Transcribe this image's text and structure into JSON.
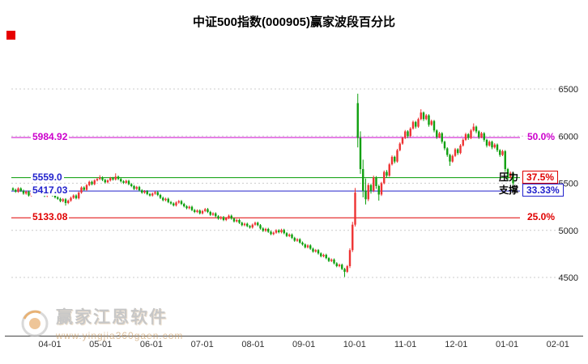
{
  "title": "中证500指数(000905)赢家波段百分比",
  "corner_marker_color": "#e60000",
  "watermark": {
    "brand": "赢家江恩软件",
    "url": "www.yingjia360gaen.com"
  },
  "y_axis": {
    "ticks": [
      6500,
      6000,
      5500,
      5000,
      4500
    ]
  },
  "x_axis": {
    "ticks": [
      "04-01",
      "05-01",
      "06-01",
      "07-01",
      "08-01",
      "09-01",
      "10-01",
      "11-01",
      "12-01",
      "01-01",
      "02-01"
    ]
  },
  "levels": [
    {
      "value": 5984.92,
      "price_label": "5984.92",
      "pct_label": "50.0%",
      "tag": "",
      "line_color": "#cc00cc",
      "price_color": "#cc00cc",
      "pct_color": "#cc00cc",
      "boxed": false
    },
    {
      "value": 5559.0,
      "price_label": "5559.0",
      "pct_label": "37.5%",
      "tag": "压力",
      "line_color": "#009900",
      "price_color": "#2222cc",
      "pct_color": "#e00000",
      "boxed": true
    },
    {
      "value": 5417.03,
      "price_label": "5417.03",
      "pct_label": "33.33%",
      "tag": "支撑",
      "line_color": "#2222cc",
      "price_color": "#2222cc",
      "pct_color": "#2222cc",
      "boxed": true
    },
    {
      "value": 5133.08,
      "price_label": "5133.08",
      "pct_label": "25.0%",
      "tag": "",
      "line_color": "#e00000",
      "price_color": "#e00000",
      "pct_color": "#e00000",
      "boxed": false
    }
  ],
  "chart_data": {
    "type": "candlestick",
    "title": "中证500指数(000905)赢家波段百分比",
    "index_name": "中证500指数",
    "symbol": "000905",
    "up_color": "#ee3333",
    "down_color": "#0fa00f",
    "ylim": [
      3880,
      7060
    ],
    "y_gridlines": [
      4500,
      5000,
      5500,
      6000,
      6500
    ],
    "x_tick_labels": [
      "04-01",
      "05-01",
      "06-01",
      "07-01",
      "08-01",
      "09-01",
      "10-01",
      "11-01",
      "12-01",
      "01-01",
      "02-01"
    ],
    "reference_levels": [
      {
        "pct": "50.0%",
        "price": 5984.92
      },
      {
        "pct": "37.5%",
        "price": 5559.0,
        "role": "压力"
      },
      {
        "pct": "33.33%",
        "price": 5417.03,
        "role": "支撑"
      },
      {
        "pct": "25.0%",
        "price": 5133.08
      }
    ],
    "candles": [
      [
        5445,
        5457,
        5418,
        5430
      ],
      [
        5430,
        5442,
        5398,
        5410
      ],
      [
        5410,
        5457,
        5398,
        5445
      ],
      [
        5445,
        5457,
        5408,
        5420
      ],
      [
        5420,
        5432,
        5378,
        5390
      ],
      [
        5390,
        5422,
        5378,
        5410
      ],
      [
        5410,
        5422,
        5358,
        5370
      ],
      [
        5370,
        5412,
        5358,
        5400
      ],
      [
        5400,
        5437,
        5388,
        5425
      ],
      [
        5425,
        5437,
        5383,
        5395
      ],
      [
        5395,
        5427,
        5383,
        5415
      ],
      [
        5415,
        5427,
        5368,
        5380
      ],
      [
        5380,
        5392,
        5353,
        5365
      ],
      [
        5365,
        5402,
        5353,
        5390
      ],
      [
        5390,
        5417,
        5378,
        5405
      ],
      [
        5405,
        5417,
        5358,
        5370
      ],
      [
        5370,
        5382,
        5338,
        5350
      ],
      [
        5350,
        5362,
        5323,
        5335
      ],
      [
        5335,
        5347,
        5298,
        5310
      ],
      [
        5310,
        5342,
        5298,
        5330
      ],
      [
        5330,
        5342,
        5262,
        5290
      ],
      [
        5290,
        5327,
        5278,
        5315
      ],
      [
        5315,
        5357,
        5303,
        5345
      ],
      [
        5345,
        5382,
        5333,
        5370
      ],
      [
        5370,
        5382,
        5328,
        5340
      ],
      [
        5340,
        5412,
        5328,
        5400
      ],
      [
        5400,
        5467,
        5388,
        5455
      ],
      [
        5455,
        5467,
        5418,
        5430
      ],
      [
        5430,
        5492,
        5418,
        5480
      ],
      [
        5480,
        5527,
        5468,
        5515
      ],
      [
        5515,
        5527,
        5478,
        5490
      ],
      [
        5490,
        5542,
        5478,
        5530
      ],
      [
        5530,
        5557,
        5518,
        5545
      ],
      [
        5545,
        5585,
        5533,
        5560
      ],
      [
        5560,
        5572,
        5523,
        5535
      ],
      [
        5535,
        5547,
        5498,
        5510
      ],
      [
        5510,
        5542,
        5498,
        5530
      ],
      [
        5530,
        5567,
        5518,
        5555
      ],
      [
        5555,
        5567,
        5528,
        5540
      ],
      [
        5540,
        5605,
        5528,
        5570
      ],
      [
        5570,
        5582,
        5533,
        5545
      ],
      [
        5545,
        5557,
        5508,
        5520
      ],
      [
        5520,
        5532,
        5493,
        5505
      ],
      [
        5505,
        5537,
        5493,
        5525
      ],
      [
        5525,
        5537,
        5478,
        5490
      ],
      [
        5490,
        5502,
        5458,
        5470
      ],
      [
        5470,
        5482,
        5428,
        5440
      ],
      [
        5440,
        5472,
        5428,
        5460
      ],
      [
        5460,
        5472,
        5413,
        5425
      ],
      [
        5425,
        5437,
        5388,
        5400
      ],
      [
        5400,
        5427,
        5388,
        5415
      ],
      [
        5415,
        5427,
        5373,
        5385
      ],
      [
        5385,
        5397,
        5358,
        5370
      ],
      [
        5370,
        5402,
        5358,
        5390
      ],
      [
        5390,
        5417,
        5378,
        5405
      ],
      [
        5405,
        5417,
        5363,
        5375
      ],
      [
        5375,
        5387,
        5333,
        5345
      ],
      [
        5345,
        5357,
        5308,
        5320
      ],
      [
        5320,
        5347,
        5308,
        5335
      ],
      [
        5335,
        5347,
        5288,
        5300
      ],
      [
        5300,
        5312,
        5273,
        5285
      ],
      [
        5285,
        5297,
        5253,
        5265
      ],
      [
        5265,
        5307,
        5253,
        5295
      ],
      [
        5295,
        5322,
        5283,
        5310
      ],
      [
        5310,
        5322,
        5268,
        5280
      ],
      [
        5280,
        5292,
        5243,
        5255
      ],
      [
        5255,
        5267,
        5223,
        5235
      ],
      [
        5235,
        5262,
        5223,
        5250
      ],
      [
        5250,
        5262,
        5203,
        5215
      ],
      [
        5215,
        5227,
        5183,
        5195
      ],
      [
        5195,
        5222,
        5183,
        5210
      ],
      [
        5210,
        5222,
        5168,
        5180
      ],
      [
        5180,
        5217,
        5168,
        5205
      ],
      [
        5205,
        5237,
        5193,
        5225
      ],
      [
        5225,
        5237,
        5183,
        5195
      ],
      [
        5195,
        5207,
        5153,
        5165
      ],
      [
        5165,
        5192,
        5153,
        5180
      ],
      [
        5180,
        5192,
        5138,
        5150
      ],
      [
        5150,
        5162,
        5113,
        5125
      ],
      [
        5125,
        5152,
        5113,
        5140
      ],
      [
        5140,
        5152,
        5098,
        5110
      ],
      [
        5110,
        5142,
        5098,
        5130
      ],
      [
        5130,
        5167,
        5118,
        5155
      ],
      [
        5155,
        5167,
        5113,
        5125
      ],
      [
        5125,
        5137,
        5083,
        5095
      ],
      [
        5095,
        5122,
        5083,
        5110
      ],
      [
        5110,
        5122,
        5068,
        5080
      ],
      [
        5080,
        5092,
        5043,
        5055
      ],
      [
        5055,
        5082,
        5043,
        5070
      ],
      [
        5070,
        5082,
        5033,
        5045
      ],
      [
        5045,
        5057,
        5018,
        5030
      ],
      [
        5030,
        5072,
        5018,
        5060
      ],
      [
        5060,
        5092,
        5048,
        5080
      ],
      [
        5080,
        5092,
        5043,
        5055
      ],
      [
        5055,
        5067,
        5008,
        5020
      ],
      [
        5020,
        5032,
        4983,
        4995
      ],
      [
        4995,
        5027,
        4983,
        5015
      ],
      [
        5015,
        5027,
        4973,
        4985
      ],
      [
        4985,
        4997,
        4948,
        4960
      ],
      [
        4960,
        4987,
        4948,
        4975
      ],
      [
        4975,
        5012,
        4963,
        5000
      ],
      [
        5000,
        5012,
        4968,
        4980
      ],
      [
        4980,
        5017,
        4968,
        5005
      ],
      [
        5005,
        5017,
        4958,
        4970
      ],
      [
        4970,
        4982,
        4928,
        4940
      ],
      [
        4940,
        4967,
        4928,
        4955
      ],
      [
        4955,
        4967,
        4908,
        4920
      ],
      [
        4920,
        4932,
        4878,
        4890
      ],
      [
        4890,
        4917,
        4878,
        4905
      ],
      [
        4905,
        4917,
        4858,
        4870
      ],
      [
        4870,
        4882,
        4838,
        4850
      ],
      [
        4850,
        4862,
        4808,
        4820
      ],
      [
        4820,
        4852,
        4808,
        4840
      ],
      [
        4840,
        4852,
        4793,
        4805
      ],
      [
        4805,
        4817,
        4763,
        4775
      ],
      [
        4775,
        4802,
        4763,
        4790
      ],
      [
        4790,
        4802,
        4743,
        4755
      ],
      [
        4755,
        4767,
        4713,
        4725
      ],
      [
        4725,
        4752,
        4713,
        4740
      ],
      [
        4740,
        4752,
        4693,
        4705
      ],
      [
        4705,
        4717,
        4663,
        4675
      ],
      [
        4675,
        4702,
        4663,
        4690
      ],
      [
        4690,
        4702,
        4638,
        4650
      ],
      [
        4650,
        4662,
        4608,
        4620
      ],
      [
        4620,
        4647,
        4608,
        4635
      ],
      [
        4635,
        4647,
        4578,
        4590
      ],
      [
        4590,
        4602,
        4505,
        4560
      ],
      [
        4560,
        4632,
        4548,
        4620
      ],
      [
        4620,
        4810,
        4600,
        4790
      ],
      [
        4790,
        5090,
        4770,
        5060
      ],
      [
        5060,
        5450,
        5040,
        5400
      ],
      [
        6350,
        6450,
        5880,
        5980
      ],
      [
        5980,
        6050,
        5600,
        5650
      ],
      [
        5650,
        5750,
        5350,
        5420
      ],
      [
        5420,
        5550,
        5275,
        5330
      ],
      [
        5330,
        5500,
        5310,
        5480
      ],
      [
        5480,
        5495,
        5390,
        5420
      ],
      [
        5420,
        5580,
        5405,
        5560
      ],
      [
        5560,
        5575,
        5440,
        5470
      ],
      [
        5470,
        5485,
        5315,
        5380
      ],
      [
        5380,
        5515,
        5365,
        5500
      ],
      [
        5500,
        5635,
        5488,
        5620
      ],
      [
        5620,
        5640,
        5560,
        5580
      ],
      [
        5580,
        5715,
        5568,
        5700
      ],
      [
        5700,
        5795,
        5688,
        5780
      ],
      [
        5780,
        5792,
        5710,
        5730
      ],
      [
        5730,
        5865,
        5718,
        5850
      ],
      [
        5850,
        5935,
        5838,
        5920
      ],
      [
        5920,
        5995,
        5908,
        5980
      ],
      [
        5980,
        6065,
        5968,
        6050
      ],
      [
        6050,
        6062,
        5980,
        6000
      ],
      [
        6000,
        6095,
        5988,
        6080
      ],
      [
        6080,
        6165,
        6068,
        6150
      ],
      [
        6150,
        6162,
        6080,
        6100
      ],
      [
        6100,
        6195,
        6088,
        6180
      ],
      [
        6180,
        6285,
        6168,
        6250
      ],
      [
        6250,
        6262,
        6160,
        6180
      ],
      [
        6180,
        6235,
        6168,
        6220
      ],
      [
        6220,
        6232,
        6100,
        6120
      ],
      [
        6120,
        6175,
        6108,
        6160
      ],
      [
        6160,
        6172,
        6040,
        6060
      ],
      [
        6060,
        6072,
        5970,
        5990
      ],
      [
        5990,
        6045,
        5978,
        6030
      ],
      [
        6030,
        6042,
        5920,
        5940
      ],
      [
        5940,
        5952,
        5850,
        5870
      ],
      [
        5870,
        5882,
        5780,
        5800
      ],
      [
        5800,
        5812,
        5685,
        5730
      ],
      [
        5730,
        5805,
        5718,
        5790
      ],
      [
        5790,
        5875,
        5778,
        5860
      ],
      [
        5860,
        5872,
        5800,
        5820
      ],
      [
        5820,
        5915,
        5808,
        5900
      ],
      [
        5900,
        5975,
        5888,
        5960
      ],
      [
        5960,
        6035,
        5948,
        6020
      ],
      [
        6020,
        6032,
        5960,
        5980
      ],
      [
        5980,
        6075,
        5968,
        6060
      ],
      [
        6060,
        6135,
        6048,
        6100
      ],
      [
        6100,
        6112,
        6030,
        6050
      ],
      [
        6050,
        6062,
        5970,
        5990
      ],
      [
        5990,
        6045,
        5978,
        6030
      ],
      [
        6030,
        6042,
        5940,
        5960
      ],
      [
        5960,
        5972,
        5880,
        5900
      ],
      [
        5900,
        5955,
        5888,
        5940
      ],
      [
        5940,
        5952,
        5860,
        5880
      ],
      [
        5880,
        5925,
        5868,
        5910
      ],
      [
        5910,
        5922,
        5830,
        5850
      ],
      [
        5850,
        5862,
        5780,
        5800
      ],
      [
        5800,
        5855,
        5788,
        5840
      ],
      [
        5840,
        5852,
        5620,
        5650
      ],
      [
        5650,
        5662,
        5530,
        5560
      ],
      [
        5560,
        5625,
        5548,
        5610
      ],
      [
        5610,
        5622,
        5425,
        5500
      ]
    ]
  }
}
